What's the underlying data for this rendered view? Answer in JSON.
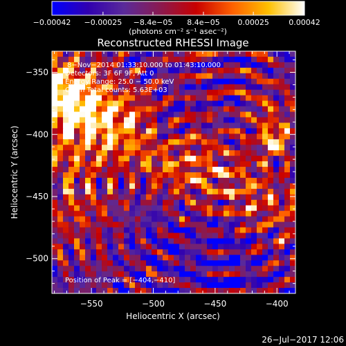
{
  "chart_data": {
    "type": "heatmap",
    "title": "Reconstructed RHESSI Image",
    "xlabel": "Heliocentric X (arcsec)",
    "ylabel": "Heliocentric Y (arcsec)",
    "xlim": [
      -582,
      -385
    ],
    "ylim": [
      -528,
      -333
    ],
    "xticks": [
      -550,
      -500,
      -450,
      -400
    ],
    "yticks": [
      -350,
      -400,
      -450,
      -500
    ],
    "xtick_labels": [
      "−550",
      "−500",
      "−450",
      "−400"
    ],
    "ytick_labels": [
      "−350",
      "−400",
      "−450",
      "−500"
    ],
    "colorbar": {
      "range": [
        -0.00042,
        0.00042
      ],
      "ticks": [
        -0.00042,
        -0.00025,
        -8.4e-05,
        8.4e-05,
        0.00025,
        0.00042
      ],
      "tick_labels": [
        "−0.00042",
        "−0.00025",
        "−8.4e−05",
        "8.4e−05",
        "0.00025",
        "0.00042"
      ],
      "label": "(photons cm⁻² s⁻¹ asec⁻²)",
      "stops": [
        "#0000ff",
        "#3000b0",
        "#5a2a9a",
        "#8a1a50",
        "#c80000",
        "#ff6000",
        "#ffc000",
        "#ffffff"
      ]
    },
    "annotations": [
      "8−Nov−2014 01:33:10.000 to 01:43:10.000",
      "Detectors: 3F 6F 9F, Att 0",
      "Energy Range: 25.0 − 50.0 keV",
      "Clean    Total counts: 5.63E+03"
    ],
    "peak_label": "Position of Peak = [−404,−410]",
    "peak": [
      -404,
      -410
    ],
    "timestamp": "26−Jul−2017 12:06"
  }
}
